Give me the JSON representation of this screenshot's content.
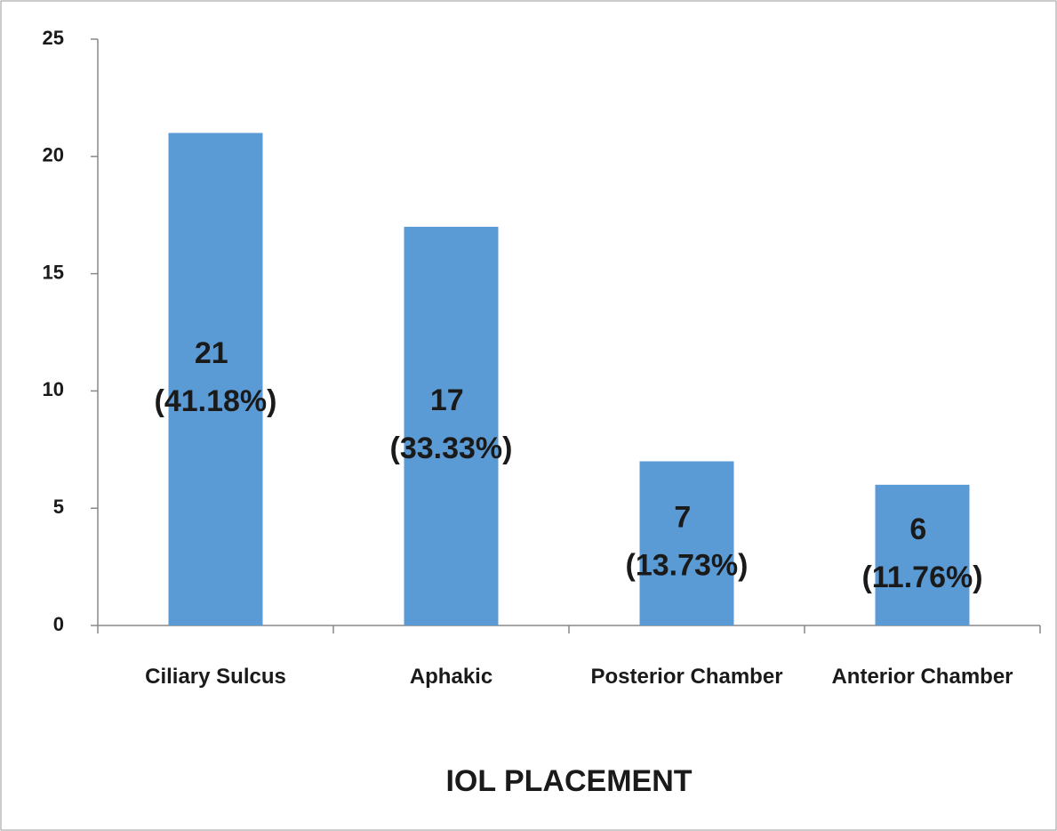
{
  "chart_data": {
    "type": "bar",
    "x_label": "IOL PLACEMENT",
    "categories": [
      "Ciliary Sulcus",
      "Aphakic",
      "Posterior Chamber",
      "Anterior Chamber"
    ],
    "values": [
      21,
      17,
      7,
      6
    ],
    "value_labels": [
      "21 (41.18%)",
      "17 (33.33%)",
      "7 (13.73%)",
      "6 (11.76%)"
    ],
    "color": "#5b9bd5",
    "ylim": [
      0,
      25
    ],
    "yticks": [
      0,
      5,
      10,
      15,
      20,
      25
    ],
    "grid": false
  }
}
